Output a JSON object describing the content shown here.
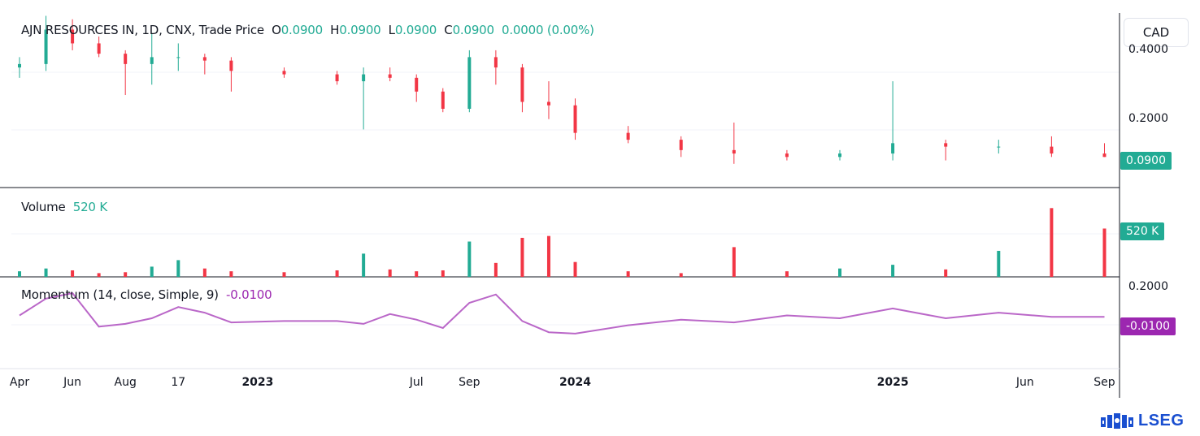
{
  "header": {
    "symbol_line": "AJN RESOURCES IN, 1D, CNX, Trade Price",
    "open_label": "O",
    "open": "0.0900",
    "high_label": "H",
    "high": "0.0900",
    "low_label": "L",
    "low": "0.0900",
    "close_label": "C",
    "close": "0.0900",
    "change": "0.0000 (0.00%)"
  },
  "currency_button": "CAD",
  "volume_legend": {
    "label": "Volume",
    "value": "520 K"
  },
  "momentum_legend": {
    "label": "Momentum (14, close, Simple, 9)",
    "value": "-0.0100"
  },
  "price_tag": "0.0900",
  "volume_tag": "520 K",
  "momentum_tag": "-0.0100",
  "logo_text": "LSEG",
  "colors": {
    "up": "#22ab94",
    "down": "#f23645",
    "momentum": "#9c27b0",
    "tag_green": "#22ab94"
  },
  "chart_data": [
    {
      "type": "candlestick",
      "title": "AJN RESOURCES IN, 1D, CNX, Trade Price",
      "y_ticks": [
        "0.4000",
        "0.2000"
      ],
      "y_tick_values": [
        0.4,
        0.2
      ],
      "x_ticks": [
        "Apr",
        "Jun",
        "Aug",
        "17",
        "2023",
        "Jul",
        "Sep",
        "2024",
        "2025",
        "Jun",
        "Sep"
      ],
      "x_tick_bold": [
        false,
        false,
        false,
        false,
        true,
        false,
        false,
        true,
        true,
        false,
        false
      ],
      "ylim": [
        0.02,
        0.48
      ],
      "series": [
        {
          "x": "2022-04",
          "open": 0.35,
          "high": 0.38,
          "low": 0.32,
          "close": 0.36
        },
        {
          "x": "2022-05",
          "open": 0.36,
          "high": 0.5,
          "low": 0.34,
          "close": 0.46
        },
        {
          "x": "2022-06",
          "open": 0.46,
          "high": 0.49,
          "low": 0.4,
          "close": 0.42
        },
        {
          "x": "2022-07",
          "open": 0.42,
          "high": 0.44,
          "low": 0.38,
          "close": 0.39
        },
        {
          "x": "2022-08",
          "open": 0.39,
          "high": 0.4,
          "low": 0.27,
          "close": 0.36
        },
        {
          "x": "2022-09",
          "open": 0.36,
          "high": 0.45,
          "low": 0.3,
          "close": 0.38
        },
        {
          "x": "2022-10",
          "open": 0.38,
          "high": 0.42,
          "low": 0.34,
          "close": 0.38
        },
        {
          "x": "2022-11",
          "open": 0.38,
          "high": 0.39,
          "low": 0.33,
          "close": 0.37
        },
        {
          "x": "2022-12",
          "open": 0.37,
          "high": 0.38,
          "low": 0.28,
          "close": 0.34
        },
        {
          "x": "2023-02",
          "open": 0.34,
          "high": 0.35,
          "low": 0.32,
          "close": 0.33
        },
        {
          "x": "2023-04",
          "open": 0.33,
          "high": 0.34,
          "low": 0.3,
          "close": 0.31
        },
        {
          "x": "2023-05",
          "open": 0.31,
          "high": 0.35,
          "low": 0.17,
          "close": 0.33
        },
        {
          "x": "2023-06",
          "open": 0.33,
          "high": 0.35,
          "low": 0.31,
          "close": 0.32
        },
        {
          "x": "2023-07",
          "open": 0.32,
          "high": 0.33,
          "low": 0.25,
          "close": 0.28
        },
        {
          "x": "2023-08",
          "open": 0.28,
          "high": 0.29,
          "low": 0.22,
          "close": 0.23
        },
        {
          "x": "2023-09",
          "open": 0.23,
          "high": 0.4,
          "low": 0.22,
          "close": 0.38
        },
        {
          "x": "2023-10",
          "open": 0.38,
          "high": 0.4,
          "low": 0.3,
          "close": 0.35
        },
        {
          "x": "2023-11",
          "open": 0.35,
          "high": 0.36,
          "low": 0.22,
          "close": 0.25
        },
        {
          "x": "2023-12",
          "open": 0.25,
          "high": 0.31,
          "low": 0.2,
          "close": 0.24
        },
        {
          "x": "2024-01",
          "open": 0.24,
          "high": 0.26,
          "low": 0.14,
          "close": 0.16
        },
        {
          "x": "2024-03",
          "open": 0.16,
          "high": 0.18,
          "low": 0.13,
          "close": 0.14
        },
        {
          "x": "2024-05",
          "open": 0.14,
          "high": 0.15,
          "low": 0.09,
          "close": 0.11
        },
        {
          "x": "2024-07",
          "open": 0.11,
          "high": 0.19,
          "low": 0.07,
          "close": 0.1
        },
        {
          "x": "2024-09",
          "open": 0.1,
          "high": 0.11,
          "low": 0.08,
          "close": 0.09
        },
        {
          "x": "2024-11",
          "open": 0.09,
          "high": 0.11,
          "low": 0.08,
          "close": 0.1
        },
        {
          "x": "2025-01",
          "open": 0.1,
          "high": 0.31,
          "low": 0.08,
          "close": 0.13
        },
        {
          "x": "2025-03",
          "open": 0.13,
          "high": 0.14,
          "low": 0.08,
          "close": 0.12
        },
        {
          "x": "2025-05",
          "open": 0.12,
          "high": 0.14,
          "low": 0.1,
          "close": 0.12
        },
        {
          "x": "2025-07",
          "open": 0.12,
          "high": 0.15,
          "low": 0.09,
          "close": 0.1
        },
        {
          "x": "2025-09",
          "open": 0.1,
          "high": 0.13,
          "low": 0.09,
          "close": 0.09
        }
      ],
      "last_value": 0.09
    },
    {
      "type": "bar",
      "title": "Volume",
      "last_value_label": "520 K",
      "ylim": [
        0,
        900000
      ],
      "values": [
        {
          "x": "2022-04",
          "v": 60000
        },
        {
          "x": "2022-05",
          "v": 90000
        },
        {
          "x": "2022-06",
          "v": 70000
        },
        {
          "x": "2022-07",
          "v": 40000
        },
        {
          "x": "2022-08",
          "v": 50000
        },
        {
          "x": "2022-09",
          "v": 110000
        },
        {
          "x": "2022-10",
          "v": 180000
        },
        {
          "x": "2022-11",
          "v": 90000
        },
        {
          "x": "2022-12",
          "v": 60000
        },
        {
          "x": "2023-02",
          "v": 50000
        },
        {
          "x": "2023-04",
          "v": 70000
        },
        {
          "x": "2023-05",
          "v": 250000
        },
        {
          "x": "2023-06",
          "v": 80000
        },
        {
          "x": "2023-07",
          "v": 60000
        },
        {
          "x": "2023-08",
          "v": 70000
        },
        {
          "x": "2023-09",
          "v": 380000
        },
        {
          "x": "2023-10",
          "v": 150000
        },
        {
          "x": "2023-11",
          "v": 420000
        },
        {
          "x": "2023-12",
          "v": 440000
        },
        {
          "x": "2024-01",
          "v": 160000
        },
        {
          "x": "2024-03",
          "v": 60000
        },
        {
          "x": "2024-05",
          "v": 40000
        },
        {
          "x": "2024-07",
          "v": 320000
        },
        {
          "x": "2024-09",
          "v": 60000
        },
        {
          "x": "2024-11",
          "v": 90000
        },
        {
          "x": "2025-01",
          "v": 130000
        },
        {
          "x": "2025-03",
          "v": 80000
        },
        {
          "x": "2025-05",
          "v": 280000
        },
        {
          "x": "2025-07",
          "v": 740000
        },
        {
          "x": "2025-09",
          "v": 520000
        }
      ]
    },
    {
      "type": "line",
      "title": "Momentum (14, close, Simple, 9)",
      "y_ticks": [
        "0.2000"
      ],
      "y_tick_values": [
        0.2
      ],
      "ylim": [
        -0.38,
        0.27
      ],
      "last_value": -0.01,
      "values": [
        {
          "x": "2022-04",
          "y": 0.0
        },
        {
          "x": "2022-05",
          "y": 0.12
        },
        {
          "x": "2022-06",
          "y": 0.16
        },
        {
          "x": "2022-07",
          "y": -0.08
        },
        {
          "x": "2022-08",
          "y": -0.06
        },
        {
          "x": "2022-09",
          "y": -0.02
        },
        {
          "x": "2022-10",
          "y": 0.06
        },
        {
          "x": "2022-11",
          "y": 0.02
        },
        {
          "x": "2022-12",
          "y": -0.05
        },
        {
          "x": "2023-02",
          "y": -0.04
        },
        {
          "x": "2023-04",
          "y": -0.04
        },
        {
          "x": "2023-05",
          "y": -0.06
        },
        {
          "x": "2023-06",
          "y": 0.01
        },
        {
          "x": "2023-07",
          "y": -0.03
        },
        {
          "x": "2023-08",
          "y": -0.09
        },
        {
          "x": "2023-09",
          "y": 0.09
        },
        {
          "x": "2023-10",
          "y": 0.15
        },
        {
          "x": "2023-11",
          "y": -0.04
        },
        {
          "x": "2023-12",
          "y": -0.12
        },
        {
          "x": "2024-01",
          "y": -0.13
        },
        {
          "x": "2024-03",
          "y": -0.07
        },
        {
          "x": "2024-05",
          "y": -0.03
        },
        {
          "x": "2024-07",
          "y": -0.05
        },
        {
          "x": "2024-09",
          "y": 0.0
        },
        {
          "x": "2024-11",
          "y": -0.02
        },
        {
          "x": "2025-01",
          "y": 0.05
        },
        {
          "x": "2025-03",
          "y": -0.02
        },
        {
          "x": "2025-05",
          "y": 0.02
        },
        {
          "x": "2025-07",
          "y": -0.01
        },
        {
          "x": "2025-09",
          "y": -0.01
        }
      ]
    }
  ]
}
